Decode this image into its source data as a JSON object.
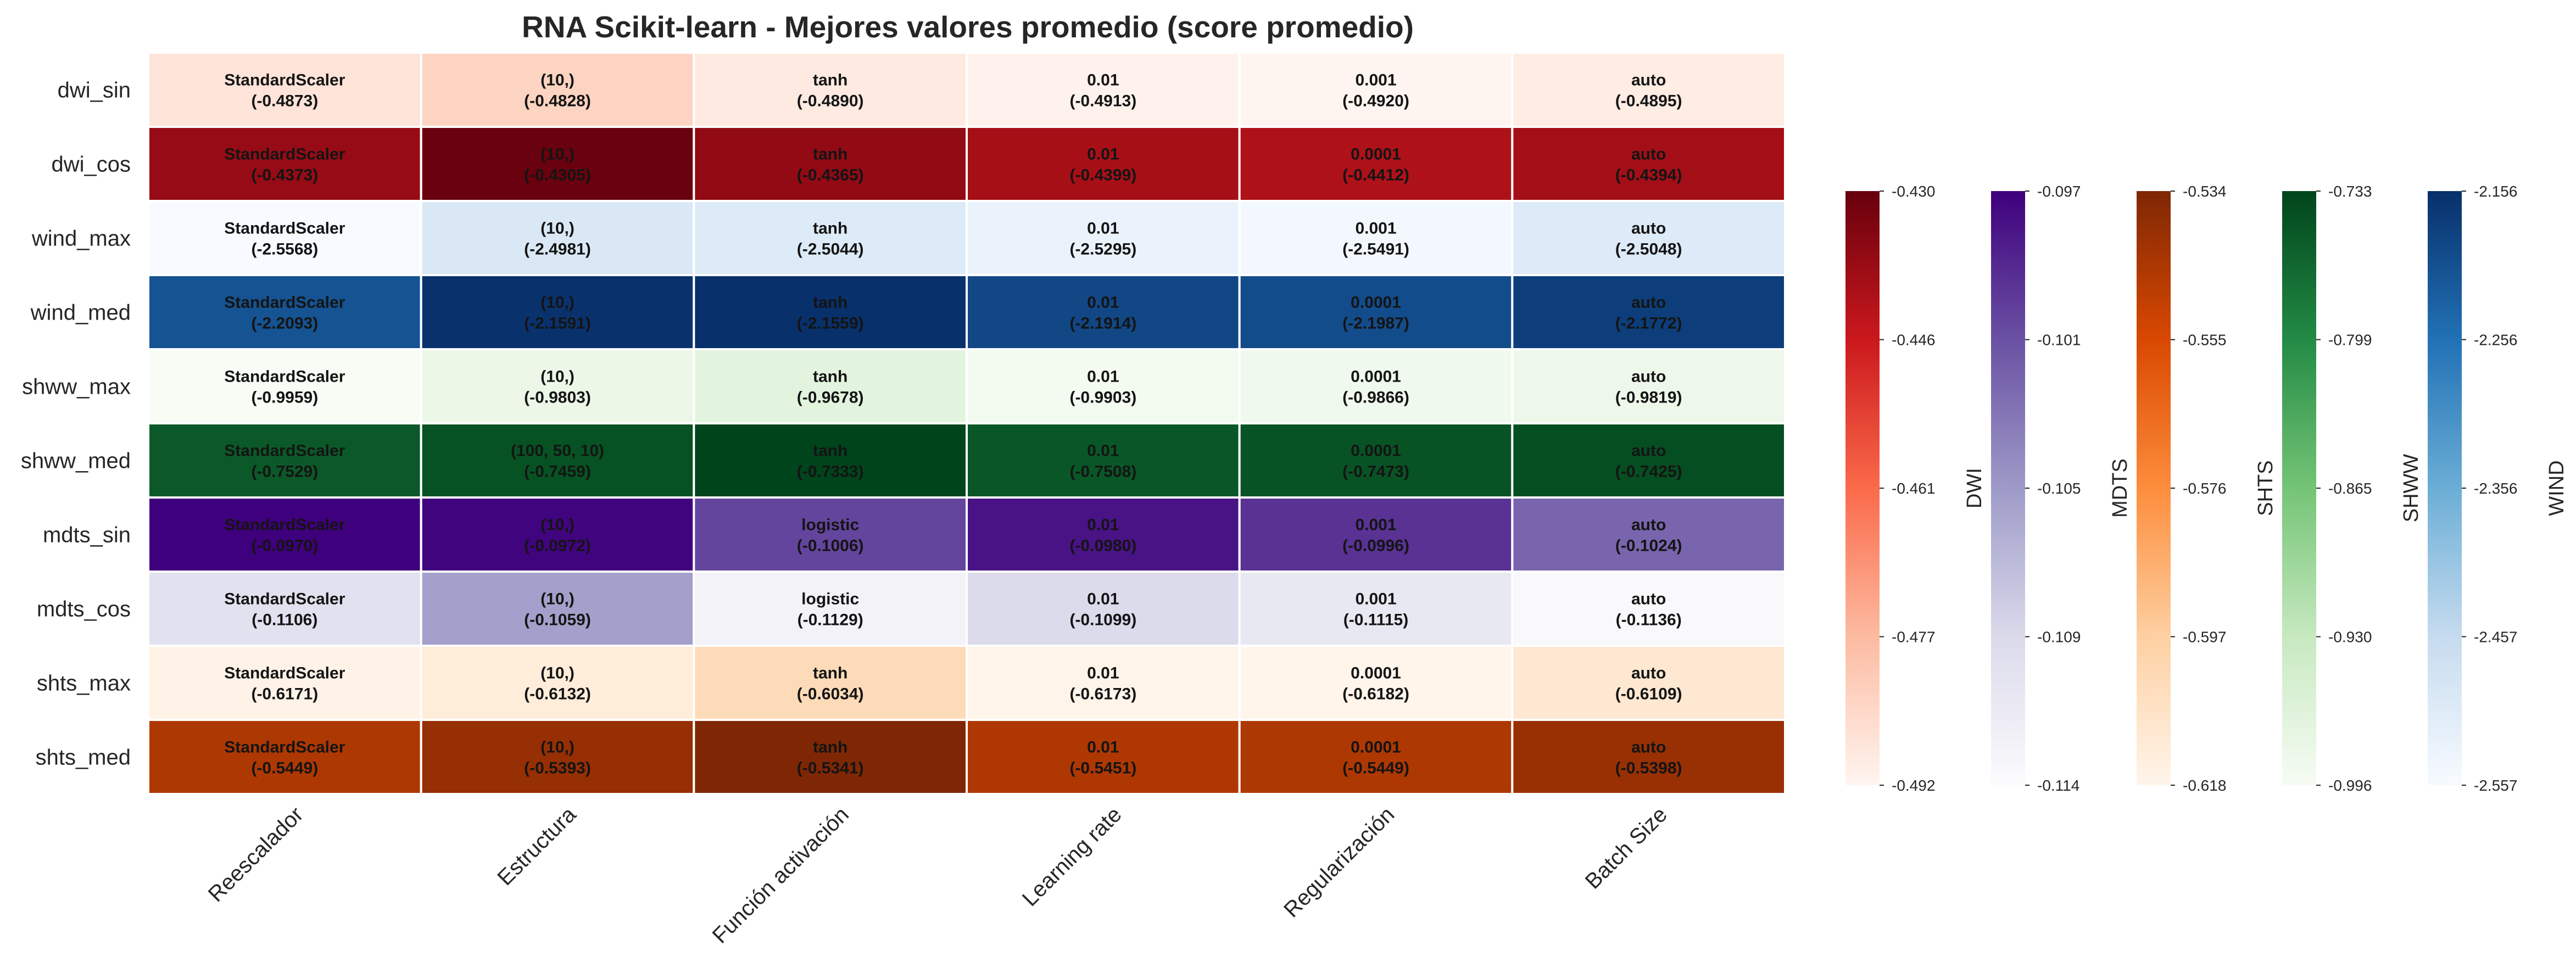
{
  "chart_data": {
    "type": "heatmap",
    "title": "RNA Scikit-learn - Mejores valores promedio (score promedio)",
    "columns": [
      "Reescalador",
      "Estructura",
      "Función activación",
      "Learning rate",
      "Regularización",
      "Batch Size"
    ],
    "rows": [
      {
        "label": "dwi_sin",
        "group": "DWI",
        "cells": [
          {
            "param": "StandardScaler",
            "score": -0.4873,
            "score_text": "(-0.4873)"
          },
          {
            "param": "(10,)",
            "score": -0.4828,
            "score_text": "(-0.4828)"
          },
          {
            "param": "tanh",
            "score": -0.489,
            "score_text": "(-0.4890)"
          },
          {
            "param": "0.01",
            "score": -0.4913,
            "score_text": "(-0.4913)"
          },
          {
            "param": "0.001",
            "score": -0.492,
            "score_text": "(-0.4920)"
          },
          {
            "param": "auto",
            "score": -0.4895,
            "score_text": "(-0.4895)"
          }
        ]
      },
      {
        "label": "dwi_cos",
        "group": "DWI",
        "cells": [
          {
            "param": "StandardScaler",
            "score": -0.4373,
            "score_text": "(-0.4373)"
          },
          {
            "param": "(10,)",
            "score": -0.4305,
            "score_text": "(-0.4305)"
          },
          {
            "param": "tanh",
            "score": -0.4365,
            "score_text": "(-0.4365)"
          },
          {
            "param": "0.01",
            "score": -0.4399,
            "score_text": "(-0.4399)"
          },
          {
            "param": "0.0001",
            "score": -0.4412,
            "score_text": "(-0.4412)"
          },
          {
            "param": "auto",
            "score": -0.4394,
            "score_text": "(-0.4394)"
          }
        ]
      },
      {
        "label": "wind_max",
        "group": "WIND",
        "cells": [
          {
            "param": "StandardScaler",
            "score": -2.5568,
            "score_text": "(-2.5568)"
          },
          {
            "param": "(10,)",
            "score": -2.4981,
            "score_text": "(-2.4981)"
          },
          {
            "param": "tanh",
            "score": -2.5044,
            "score_text": "(-2.5044)"
          },
          {
            "param": "0.01",
            "score": -2.5295,
            "score_text": "(-2.5295)"
          },
          {
            "param": "0.001",
            "score": -2.5491,
            "score_text": "(-2.5491)"
          },
          {
            "param": "auto",
            "score": -2.5048,
            "score_text": "(-2.5048)"
          }
        ]
      },
      {
        "label": "wind_med",
        "group": "WIND",
        "cells": [
          {
            "param": "StandardScaler",
            "score": -2.2093,
            "score_text": "(-2.2093)"
          },
          {
            "param": "(10,)",
            "score": -2.1591,
            "score_text": "(-2.1591)"
          },
          {
            "param": "tanh",
            "score": -2.1559,
            "score_text": "(-2.1559)"
          },
          {
            "param": "0.01",
            "score": -2.1914,
            "score_text": "(-2.1914)"
          },
          {
            "param": "0.0001",
            "score": -2.1987,
            "score_text": "(-2.1987)"
          },
          {
            "param": "auto",
            "score": -2.1772,
            "score_text": "(-2.1772)"
          }
        ]
      },
      {
        "label": "shww_max",
        "group": "SHWW",
        "cells": [
          {
            "param": "StandardScaler",
            "score": -0.9959,
            "score_text": "(-0.9959)"
          },
          {
            "param": "(10,)",
            "score": -0.9803,
            "score_text": "(-0.9803)"
          },
          {
            "param": "tanh",
            "score": -0.9678,
            "score_text": "(-0.9678)"
          },
          {
            "param": "0.01",
            "score": -0.9903,
            "score_text": "(-0.9903)"
          },
          {
            "param": "0.0001",
            "score": -0.9866,
            "score_text": "(-0.9866)"
          },
          {
            "param": "auto",
            "score": -0.9819,
            "score_text": "(-0.9819)"
          }
        ]
      },
      {
        "label": "shww_med",
        "group": "SHWW",
        "cells": [
          {
            "param": "StandardScaler",
            "score": -0.7529,
            "score_text": "(-0.7529)"
          },
          {
            "param": "(100, 50, 10)",
            "score": -0.7459,
            "score_text": "(-0.7459)"
          },
          {
            "param": "tanh",
            "score": -0.7333,
            "score_text": "(-0.7333)"
          },
          {
            "param": "0.01",
            "score": -0.7508,
            "score_text": "(-0.7508)"
          },
          {
            "param": "0.0001",
            "score": -0.7473,
            "score_text": "(-0.7473)"
          },
          {
            "param": "auto",
            "score": -0.7425,
            "score_text": "(-0.7425)"
          }
        ]
      },
      {
        "label": "mdts_sin",
        "group": "MDTS",
        "cells": [
          {
            "param": "StandardScaler",
            "score": -0.097,
            "score_text": "(-0.0970)"
          },
          {
            "param": "(10,)",
            "score": -0.0972,
            "score_text": "(-0.0972)"
          },
          {
            "param": "logistic",
            "score": -0.1006,
            "score_text": "(-0.1006)"
          },
          {
            "param": "0.01",
            "score": -0.098,
            "score_text": "(-0.0980)"
          },
          {
            "param": "0.001",
            "score": -0.0996,
            "score_text": "(-0.0996)"
          },
          {
            "param": "auto",
            "score": -0.1024,
            "score_text": "(-0.1024)"
          }
        ]
      },
      {
        "label": "mdts_cos",
        "group": "MDTS",
        "cells": [
          {
            "param": "StandardScaler",
            "score": -0.1106,
            "score_text": "(-0.1106)"
          },
          {
            "param": "(10,)",
            "score": -0.1059,
            "score_text": "(-0.1059)"
          },
          {
            "param": "logistic",
            "score": -0.1129,
            "score_text": "(-0.1129)"
          },
          {
            "param": "0.01",
            "score": -0.1099,
            "score_text": "(-0.1099)"
          },
          {
            "param": "0.001",
            "score": -0.1115,
            "score_text": "(-0.1115)"
          },
          {
            "param": "auto",
            "score": -0.1136,
            "score_text": "(-0.1136)"
          }
        ]
      },
      {
        "label": "shts_max",
        "group": "SHTS",
        "cells": [
          {
            "param": "StandardScaler",
            "score": -0.6171,
            "score_text": "(-0.6171)"
          },
          {
            "param": "(10,)",
            "score": -0.6132,
            "score_text": "(-0.6132)"
          },
          {
            "param": "tanh",
            "score": -0.6034,
            "score_text": "(-0.6034)"
          },
          {
            "param": "0.01",
            "score": -0.6173,
            "score_text": "(-0.6173)"
          },
          {
            "param": "0.0001",
            "score": -0.6182,
            "score_text": "(-0.6182)"
          },
          {
            "param": "auto",
            "score": -0.6109,
            "score_text": "(-0.6109)"
          }
        ]
      },
      {
        "label": "shts_med",
        "group": "SHTS",
        "cells": [
          {
            "param": "StandardScaler",
            "score": -0.5449,
            "score_text": "(-0.5449)"
          },
          {
            "param": "(10,)",
            "score": -0.5393,
            "score_text": "(-0.5393)"
          },
          {
            "param": "tanh",
            "score": -0.5341,
            "score_text": "(-0.5341)"
          },
          {
            "param": "0.01",
            "score": -0.5451,
            "score_text": "(-0.5451)"
          },
          {
            "param": "0.0001",
            "score": -0.5449,
            "score_text": "(-0.5449)"
          },
          {
            "param": "auto",
            "score": -0.5398,
            "score_text": "(-0.5398)"
          }
        ]
      }
    ],
    "colorbars": [
      {
        "label": "DWI",
        "group": "DWI",
        "colormap": "Reds",
        "range": [
          -0.492,
          -0.43
        ],
        "ticks": [
          "-0.430",
          "-0.446",
          "-0.461",
          "-0.477",
          "-0.492"
        ],
        "colors": [
          "#fff5f0",
          "#fcbba1",
          "#fb6a4a",
          "#cb181d",
          "#67000d"
        ]
      },
      {
        "label": "MDTS",
        "group": "MDTS",
        "colormap": "Purples",
        "range": [
          -0.114,
          -0.097
        ],
        "ticks": [
          "-0.097",
          "-0.101",
          "-0.105",
          "-0.109",
          "-0.114"
        ],
        "colors": [
          "#fcfbfd",
          "#dadaeb",
          "#9e9ac8",
          "#6a51a3",
          "#3f007d"
        ]
      },
      {
        "label": "SHTS",
        "group": "SHTS",
        "colormap": "Oranges",
        "range": [
          -0.618,
          -0.534
        ],
        "ticks": [
          "-0.534",
          "-0.555",
          "-0.576",
          "-0.597",
          "-0.618"
        ],
        "colors": [
          "#fff5eb",
          "#fdd0a2",
          "#fd8d3c",
          "#d94801",
          "#7f2704"
        ]
      },
      {
        "label": "SHWW",
        "group": "SHWW",
        "colormap": "Greens",
        "range": [
          -0.996,
          -0.733
        ],
        "ticks": [
          "-0.733",
          "-0.799",
          "-0.865",
          "-0.930",
          "-0.996"
        ],
        "colors": [
          "#f7fcf5",
          "#c7e9c0",
          "#74c476",
          "#238b45",
          "#00441b"
        ]
      },
      {
        "label": "WIND",
        "group": "WIND",
        "colormap": "Blues",
        "range": [
          -2.557,
          -2.156
        ],
        "ticks": [
          "-2.156",
          "-2.256",
          "-2.356",
          "-2.457",
          "-2.557"
        ],
        "colors": [
          "#f7fbff",
          "#c6dbef",
          "#6baed6",
          "#2171b5",
          "#08306b"
        ]
      }
    ],
    "grid": false,
    "legend": "right"
  }
}
